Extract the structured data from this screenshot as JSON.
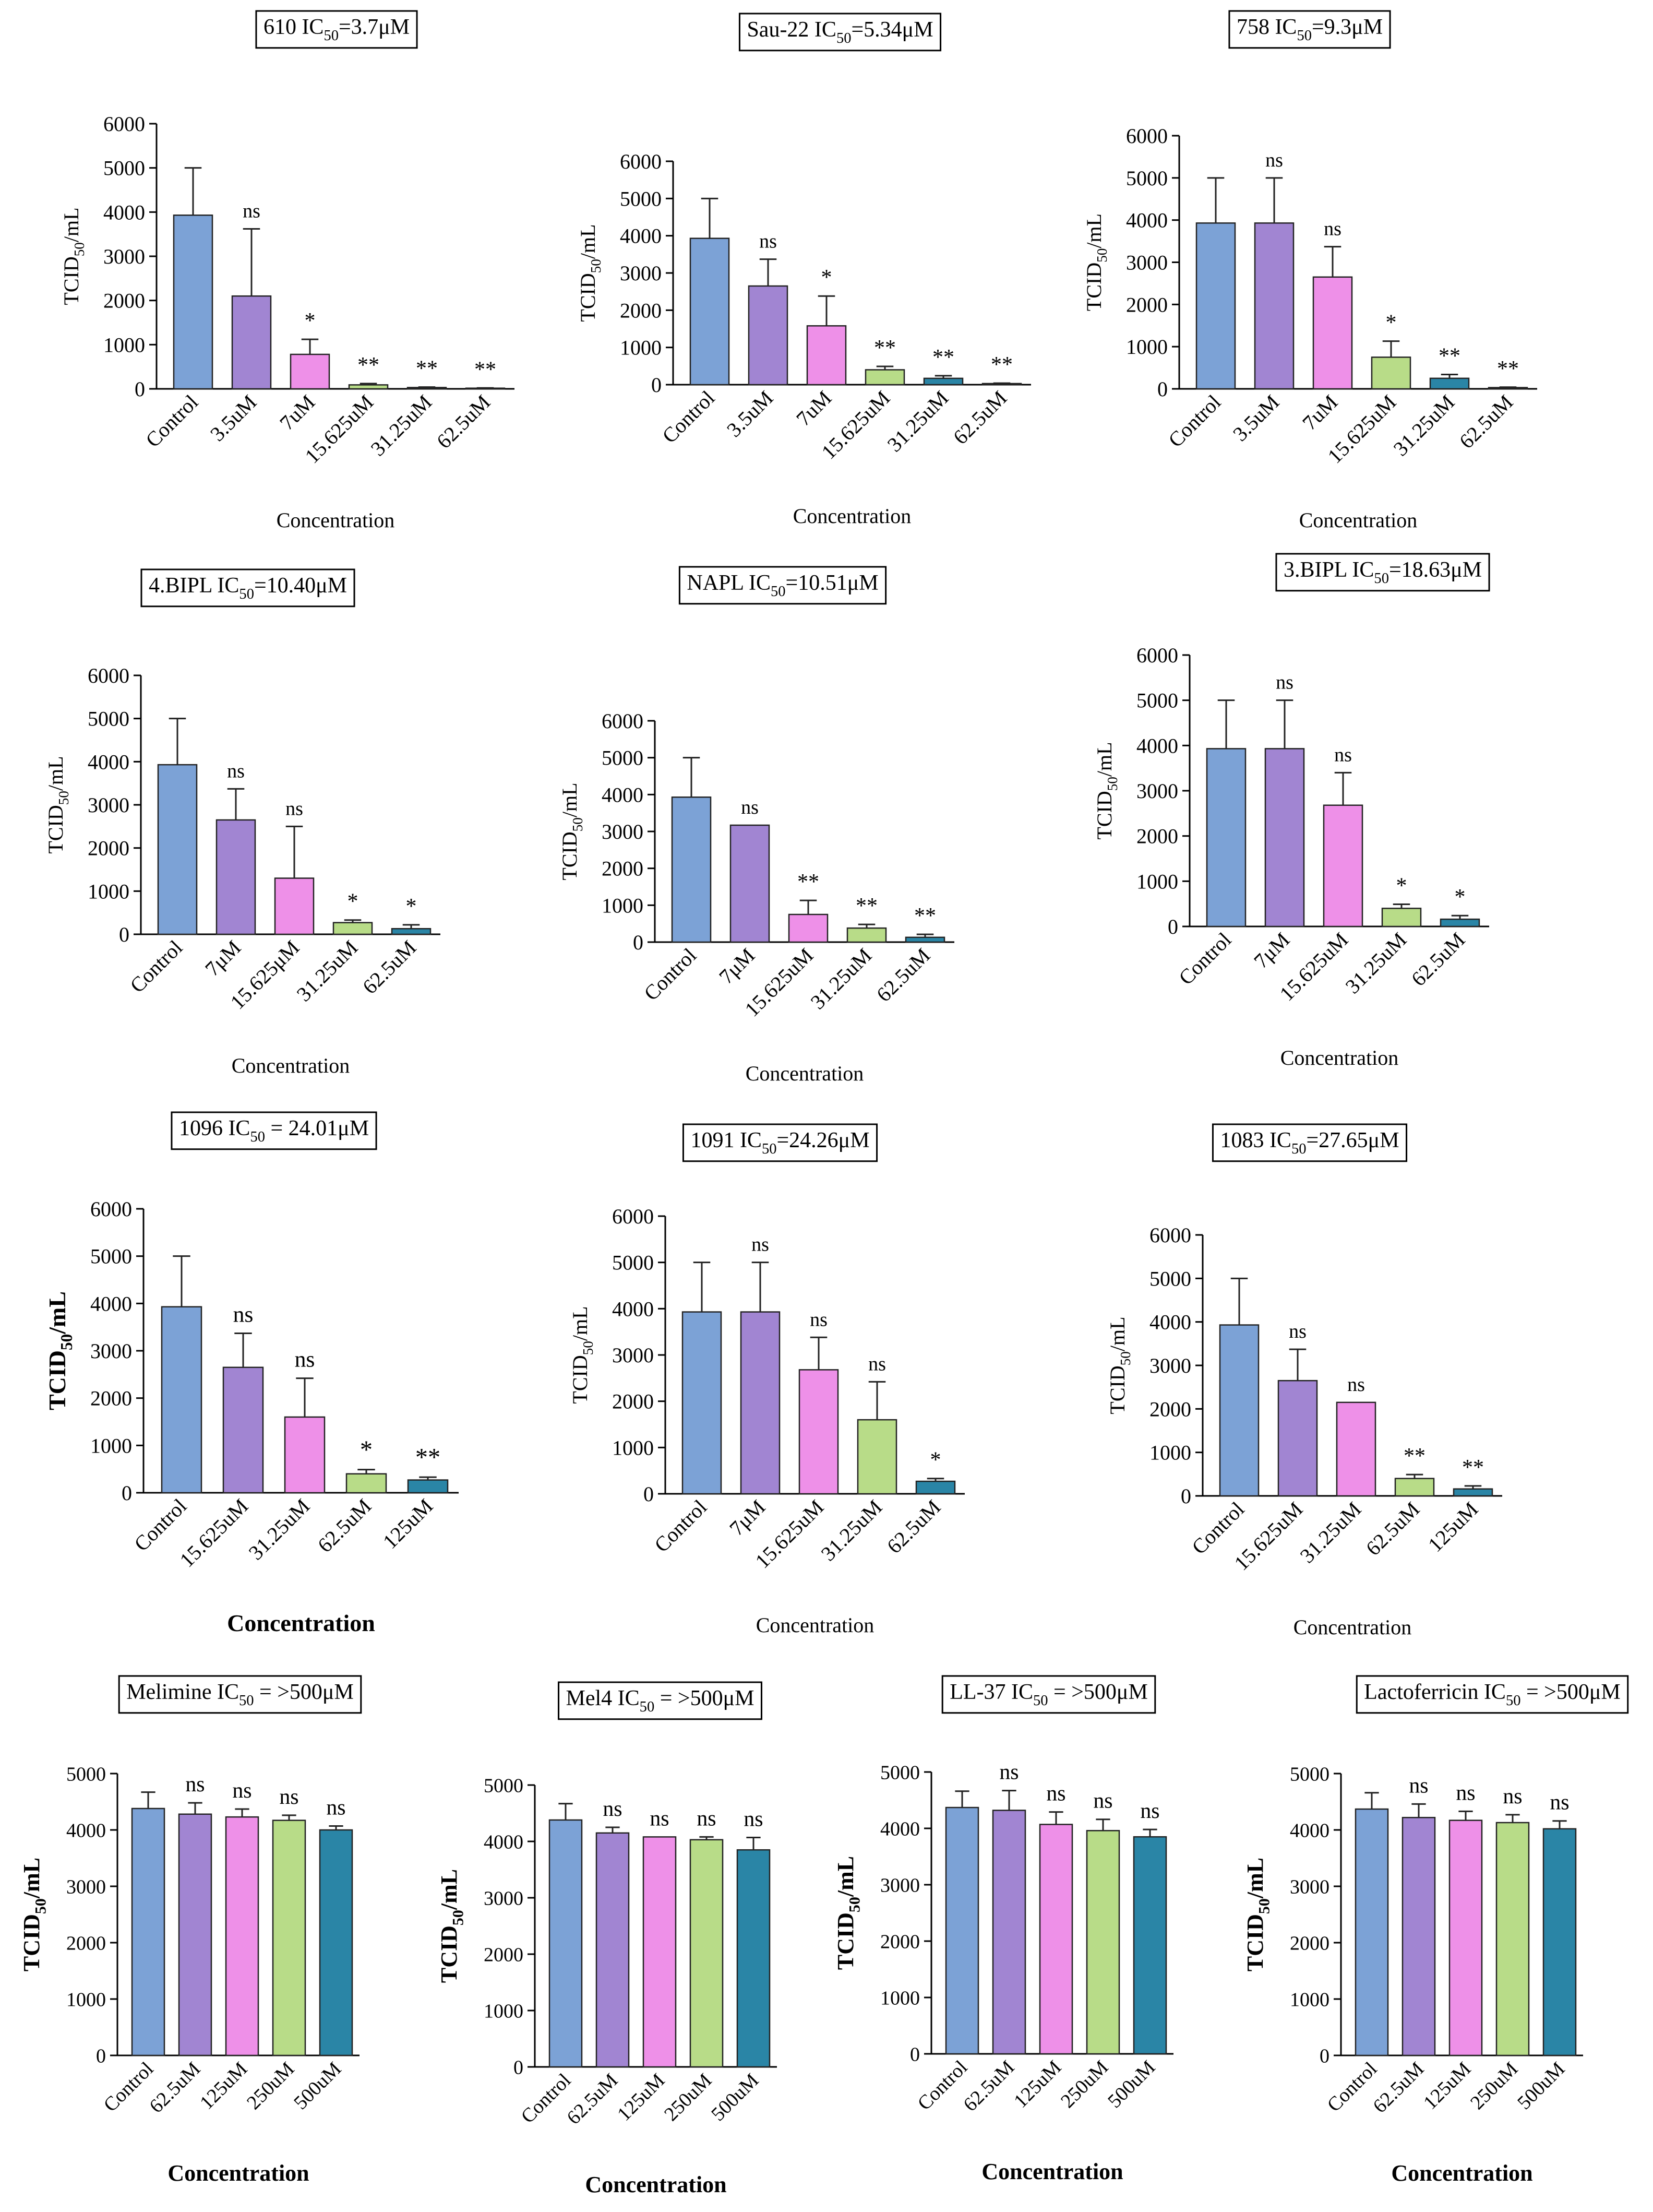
{
  "colors": [
    "#7ca2d6",
    "#a185d2",
    "#ee90e8",
    "#b8dc88",
    "#2a85a6"
  ],
  "chart_data": [
    {
      "type": "bar",
      "title": "610 IC50=3.7μM",
      "title_main": "610 IC",
      "title_sub": "50",
      "title_rest": "=3.7μM",
      "ylabel_main": "TCID",
      "ylabel_sub": "50",
      "ylabel_rest": "/mL",
      "xlabel": "Concentration",
      "ylim": [
        0,
        6000
      ],
      "yticks": [
        0,
        1000,
        2000,
        3000,
        4000,
        5000,
        6000
      ],
      "categories": [
        "Control",
        "3.5uM",
        "7uM",
        "15.625uM",
        "31.25uM",
        "62.5uM"
      ],
      "values": [
        3930,
        2100,
        780,
        90,
        30,
        15
      ],
      "errors": [
        1070,
        1520,
        340,
        30,
        10,
        5
      ],
      "significance": [
        "",
        "ns",
        "*",
        "**",
        "**",
        "**"
      ]
    },
    {
      "type": "bar",
      "title": "Sau-22 IC50=5.34μM",
      "title_main": "Sau-22 IC",
      "title_sub": "50",
      "title_rest": "=5.34μM",
      "ylabel_main": "TCID",
      "ylabel_sub": "50",
      "ylabel_rest": "/mL",
      "xlabel": "Concentration",
      "ylim": [
        0,
        6000
      ],
      "yticks": [
        0,
        1000,
        2000,
        3000,
        4000,
        5000,
        6000
      ],
      "categories": [
        "Control",
        "3.5uM",
        "7uM",
        "15.625uM",
        "31.25uM",
        "62.5uM"
      ],
      "values": [
        3930,
        2650,
        1580,
        400,
        170,
        30
      ],
      "errors": [
        1070,
        720,
        800,
        90,
        70,
        10
      ],
      "significance": [
        "",
        "ns",
        "*",
        "**",
        "**",
        "**"
      ]
    },
    {
      "type": "bar",
      "title": "758 IC50=9.3μM",
      "title_main": "758 IC",
      "title_sub": "50",
      "title_rest": "=9.3μM",
      "ylabel_main": "TCID",
      "ylabel_sub": "50",
      "ylabel_rest": "/mL",
      "xlabel": "Concentration",
      "ylim": [
        0,
        6000
      ],
      "yticks": [
        0,
        1000,
        2000,
        3000,
        4000,
        5000,
        6000
      ],
      "categories": [
        "Control",
        "3.5uM",
        "7uM",
        "15.625uM",
        "31.25uM",
        "62.5uM"
      ],
      "values": [
        3930,
        3930,
        2650,
        750,
        250,
        30
      ],
      "errors": [
        1070,
        1070,
        720,
        380,
        90,
        10
      ],
      "significance": [
        "",
        "ns",
        "ns",
        "*",
        "**",
        "**"
      ]
    },
    {
      "type": "bar",
      "title": "4.BIPL IC50=10.40μM",
      "title_main": "4.BIPL IC",
      "title_sub": "50",
      "title_rest": "=10.40μM",
      "ylabel_main": "TCID",
      "ylabel_sub": "50",
      "ylabel_rest": "/mL",
      "xlabel": "Concentration",
      "ylim": [
        0,
        6000
      ],
      "yticks": [
        0,
        1000,
        2000,
        3000,
        4000,
        5000,
        6000
      ],
      "categories": [
        "Control",
        "7μM",
        "15.625μM",
        "31.25uM",
        "62.5uM"
      ],
      "values": [
        3930,
        2650,
        1300,
        270,
        130
      ],
      "errors": [
        1070,
        720,
        1200,
        60,
        90
      ],
      "significance": [
        "",
        "ns",
        "ns",
        "*",
        "*"
      ]
    },
    {
      "type": "bar",
      "title": "NAPL IC50=10.51μM",
      "title_main": "NAPL IC",
      "title_sub": "50",
      "title_rest": "=10.51μM",
      "ylabel_main": "TCID",
      "ylabel_sub": "50",
      "ylabel_rest": "/mL",
      "xlabel": "Concentration",
      "ylim": [
        0,
        6000
      ],
      "yticks": [
        0,
        1000,
        2000,
        3000,
        4000,
        5000,
        6000
      ],
      "categories": [
        "Control",
        "7μM",
        "15.625uM",
        "31.25uM",
        "62.5uM"
      ],
      "values": [
        3930,
        3170,
        750,
        380,
        130
      ],
      "errors": [
        1070,
        0,
        380,
        100,
        80
      ],
      "significance": [
        "",
        "ns",
        "**",
        "**",
        "**"
      ]
    },
    {
      "type": "bar",
      "title": "3.BIPL IC50=18.63μM",
      "title_main": "3.BIPL IC",
      "title_sub": "50",
      "title_rest": "=18.63μM",
      "ylabel_main": "TCID",
      "ylabel_sub": "50",
      "ylabel_rest": "/mL",
      "xlabel": "Concentration",
      "ylim": [
        0,
        6000
      ],
      "yticks": [
        0,
        1000,
        2000,
        3000,
        4000,
        5000,
        6000
      ],
      "categories": [
        "Control",
        "7μM",
        "15.625uM",
        "31.25uM",
        "62.5uM"
      ],
      "values": [
        3930,
        3930,
        2680,
        400,
        160
      ],
      "errors": [
        1070,
        1070,
        720,
        90,
        80
      ],
      "significance": [
        "",
        "ns",
        "ns",
        "*",
        "*"
      ]
    },
    {
      "type": "bar",
      "title": "1096 IC50 = 24.01μM",
      "title_main": "1096 IC",
      "title_sub": "50",
      "title_rest": " = 24.01μM",
      "ylabel_main": "TCID",
      "ylabel_sub": "50",
      "ylabel_rest": "/mL",
      "xlabel": "Concentration",
      "ylim": [
        0,
        6000
      ],
      "yticks": [
        0,
        1000,
        2000,
        3000,
        4000,
        5000,
        6000
      ],
      "categories": [
        "Control",
        "15.625uM",
        "31.25uM",
        "62.5uM",
        "125uM"
      ],
      "values": [
        3930,
        2650,
        1600,
        400,
        270
      ],
      "errors": [
        1070,
        720,
        820,
        90,
        60
      ],
      "significance": [
        "",
        "ns",
        "ns",
        "*",
        "**"
      ]
    },
    {
      "type": "bar",
      "title": "1091 IC50=24.26μM",
      "title_main": "1091 IC",
      "title_sub": "50",
      "title_rest": "=24.26μM",
      "ylabel_main": "TCID",
      "ylabel_sub": "50",
      "ylabel_rest": "/mL",
      "xlabel": "Concentration",
      "ylim": [
        0,
        6000
      ],
      "yticks": [
        0,
        1000,
        2000,
        3000,
        4000,
        5000,
        6000
      ],
      "categories": [
        "Control",
        "7μM",
        "15.625uM",
        "31.25uM",
        "62.5uM"
      ],
      "values": [
        3930,
        3930,
        2680,
        1600,
        270
      ],
      "errors": [
        1070,
        1070,
        700,
        820,
        60
      ],
      "significance": [
        "",
        "ns",
        "ns",
        "ns",
        "*"
      ]
    },
    {
      "type": "bar",
      "title": "1083 IC50=27.65μM",
      "title_main": "1083 IC",
      "title_sub": "50",
      "title_rest": "=27.65μM",
      "ylabel_main": "TCID",
      "ylabel_sub": "50",
      "ylabel_rest": "/mL",
      "xlabel": "Concentration",
      "ylim": [
        0,
        6000
      ],
      "yticks": [
        0,
        1000,
        2000,
        3000,
        4000,
        5000,
        6000
      ],
      "categories": [
        "Control",
        "15.625uM",
        "31.25uM",
        "62.5uM",
        "125uM"
      ],
      "values": [
        3930,
        2650,
        2150,
        400,
        160
      ],
      "errors": [
        1070,
        720,
        0,
        90,
        70
      ],
      "significance": [
        "",
        "ns",
        "ns",
        "**",
        "**"
      ]
    },
    {
      "type": "bar",
      "title": "Melimine IC50 = >500μM",
      "title_main": "Melimine IC",
      "title_sub": "50",
      "title_rest": " = >500μM",
      "ylabel_main": "TCID",
      "ylabel_sub": "50",
      "ylabel_rest": "/mL",
      "xlabel": "Concentration",
      "ylim": [
        0,
        5000
      ],
      "yticks": [
        0,
        1000,
        2000,
        3000,
        4000,
        5000
      ],
      "categories": [
        "Control",
        "62.5uM",
        "125uM",
        "250uM",
        "500uM"
      ],
      "values": [
        4380,
        4280,
        4230,
        4170,
        4000
      ],
      "errors": [
        290,
        200,
        140,
        90,
        70
      ],
      "significance": [
        "",
        "ns",
        "ns",
        "ns",
        "ns"
      ]
    },
    {
      "type": "bar",
      "title": "Mel4 IC50 = >500μM",
      "title_main": "Mel4 IC",
      "title_sub": "50",
      "title_rest": " = >500μM",
      "ylabel_main": "TCID",
      "ylabel_sub": "50",
      "ylabel_rest": "/mL",
      "xlabel": "Concentration",
      "ylim": [
        0,
        5000
      ],
      "yticks": [
        0,
        1000,
        2000,
        3000,
        4000,
        5000
      ],
      "categories": [
        "Control",
        "62.5uM",
        "125uM",
        "250uM",
        "500uM"
      ],
      "values": [
        4380,
        4150,
        4080,
        4030,
        3850
      ],
      "errors": [
        290,
        100,
        0,
        50,
        220
      ],
      "significance": [
        "",
        "ns",
        "ns",
        "ns",
        "ns"
      ]
    },
    {
      "type": "bar",
      "title": "LL-37 IC50 = >500μM",
      "title_main": "LL-37 IC",
      "title_sub": "50",
      "title_rest": " = >500μM",
      "ylabel_main": "TCID",
      "ylabel_sub": "50",
      "ylabel_rest": "/mL",
      "xlabel": "Concentration",
      "ylim": [
        0,
        5000
      ],
      "yticks": [
        0,
        1000,
        2000,
        3000,
        4000,
        5000
      ],
      "categories": [
        "Control",
        "62.5uM",
        "125uM",
        "250uM",
        "500uM"
      ],
      "values": [
        4370,
        4320,
        4070,
        3960,
        3850
      ],
      "errors": [
        290,
        350,
        220,
        200,
        130
      ],
      "significance": [
        "",
        "ns",
        "ns",
        "ns",
        "ns"
      ]
    },
    {
      "type": "bar",
      "title": "Lactoferricin IC50 = >500μM",
      "title_main": "Lactoferricin IC",
      "title_sub": "50",
      "title_rest": " = >500μM",
      "ylabel_main": "TCID",
      "ylabel_sub": "50",
      "ylabel_rest": "/mL",
      "xlabel": "Concentration",
      "ylim": [
        0,
        5000
      ],
      "yticks": [
        0,
        1000,
        2000,
        3000,
        4000,
        5000
      ],
      "categories": [
        "Control",
        "62.5uM",
        "125uM",
        "250uM",
        "500uM"
      ],
      "values": [
        4370,
        4220,
        4170,
        4130,
        4020
      ],
      "errors": [
        290,
        240,
        160,
        140,
        140
      ],
      "significance": [
        "",
        "ns",
        "ns",
        "ns",
        "ns"
      ]
    }
  ]
}
